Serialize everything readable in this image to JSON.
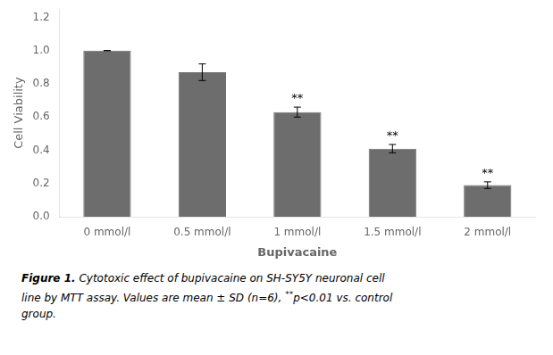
{
  "chart_data": {
    "type": "bar",
    "categories": [
      "0 mmol/l",
      "0.5 mmol/l",
      "1 mmol/l",
      "1.5 mmol/l",
      "2 mmol/l"
    ],
    "values": [
      1.0,
      0.87,
      0.63,
      0.41,
      0.19
    ],
    "errors": [
      0.0,
      0.05,
      0.03,
      0.025,
      0.02
    ],
    "significance": [
      null,
      null,
      "**",
      "**",
      "**"
    ],
    "color": "#6d6d6d",
    "ylim": [
      0.0,
      1.25
    ],
    "yticks": [
      {
        "value": 0.0,
        "label": "0.0"
      },
      {
        "value": 0.2,
        "label": "0.2"
      },
      {
        "value": 0.4,
        "label": "0.4"
      },
      {
        "value": 0.6,
        "label": "0.6"
      },
      {
        "value": 0.8,
        "label": "0.8"
      },
      {
        "value": 1.0,
        "label": "1.0"
      },
      {
        "value": 1.2,
        "label": "1.2"
      }
    ],
    "ylabel": "Cell Viability",
    "xlabel": "Bupivacaine",
    "grid": false,
    "caption": [
      [
        "Figure 1.",
        " Cytotoxic effect of bupivacaine on SH-SY5Y neuronal cell"
      ],
      [
        "line by MTT assay. Values are mean ± SD (n=6), ",
        "**",
        "p<0.01 vs. control"
      ],
      [
        "group."
      ]
    ]
  }
}
